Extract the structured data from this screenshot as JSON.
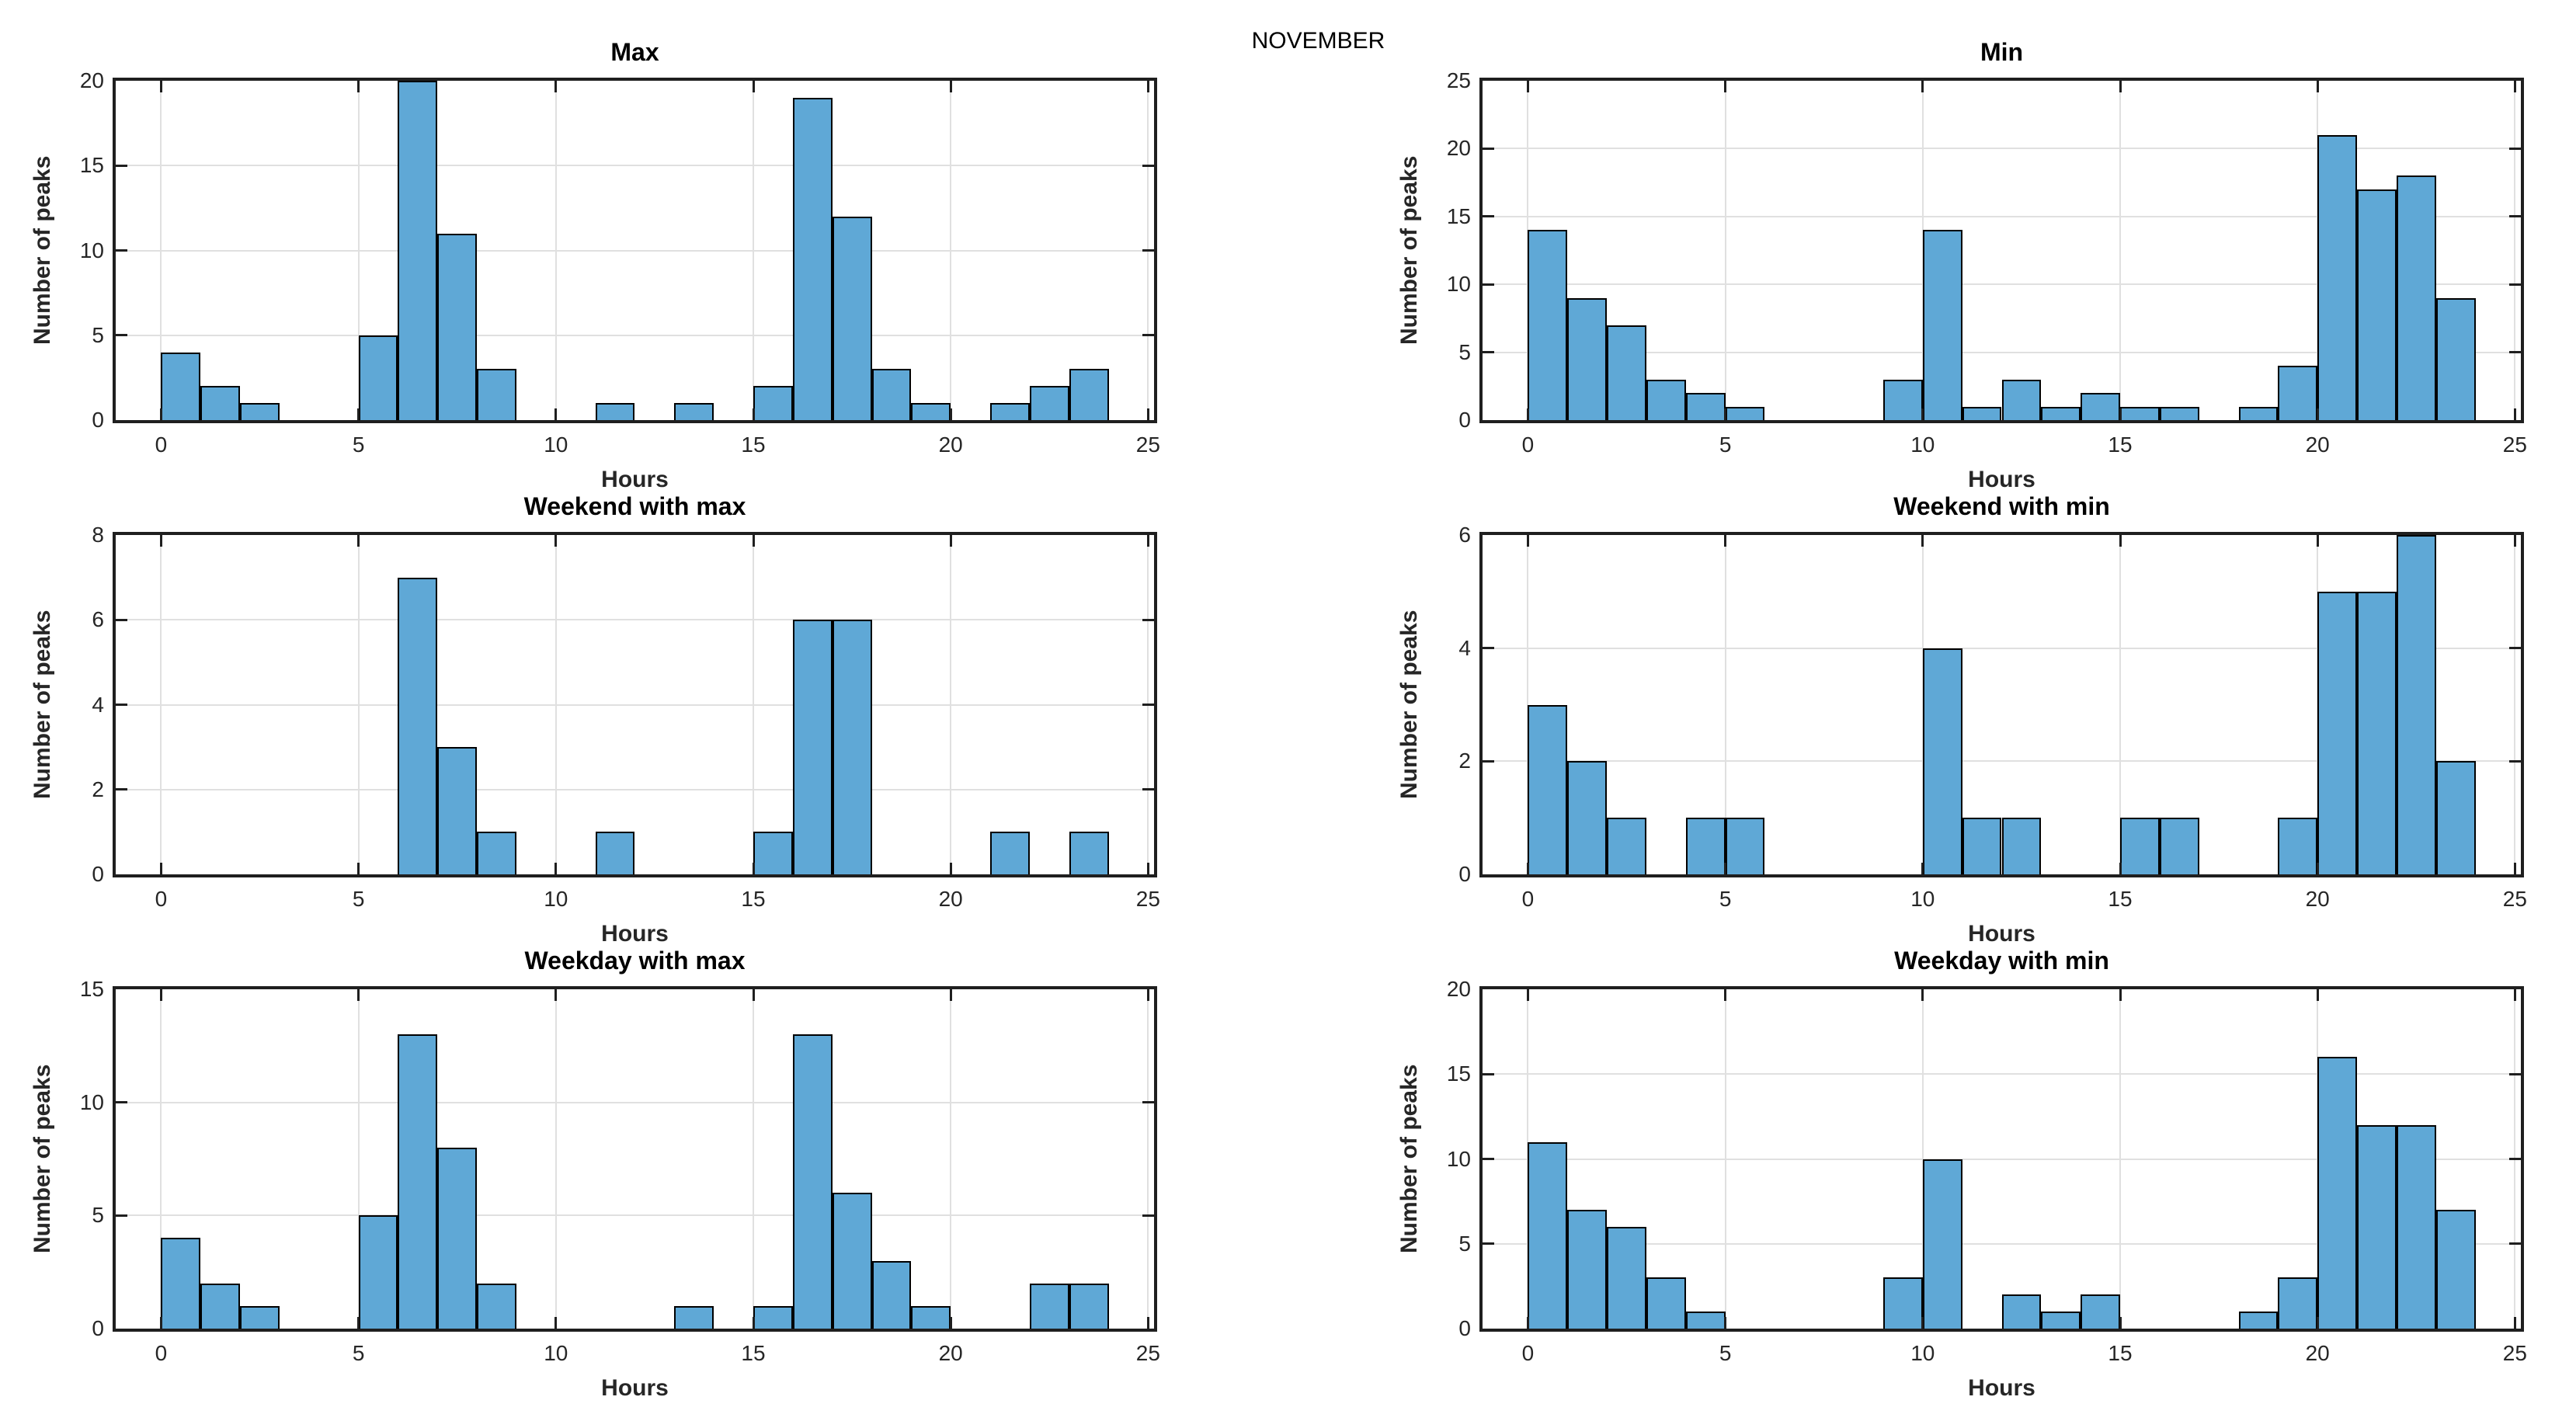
{
  "figure": {
    "title": "NOVEMBER"
  },
  "colors": {
    "bar_fill": "#5FA8D6",
    "bar_edge": "#000000",
    "axis": "#1F1F1F",
    "grid": "#E0E0E0",
    "text": "#262626",
    "background": "#FFFFFF"
  },
  "chart_data": [
    {
      "type": "bar",
      "title": "Max",
      "xlabel": "Hours",
      "ylabel": "Number of peaks",
      "bin_width_hours": 1,
      "first_bin_start_hour": 0,
      "counts_by_hour": [
        4,
        2,
        1,
        0,
        0,
        5,
        20,
        11,
        3,
        0,
        0,
        1,
        0,
        1,
        0,
        2,
        19,
        12,
        3,
        1,
        0,
        1,
        2,
        3
      ],
      "xlim": [
        -1.15,
        25.15
      ],
      "ylim": [
        0,
        20
      ],
      "xticks": [
        0,
        5,
        10,
        15,
        20,
        25
      ],
      "yticks": [
        0,
        5,
        10,
        15,
        20
      ],
      "grid": true
    },
    {
      "type": "bar",
      "title": "Min",
      "xlabel": "Hours",
      "ylabel": "Number of peaks",
      "bin_width_hours": 1,
      "first_bin_start_hour": 0,
      "counts_by_hour": [
        14,
        9,
        7,
        3,
        2,
        1,
        0,
        0,
        0,
        3,
        14,
        1,
        3,
        1,
        2,
        1,
        1,
        0,
        1,
        4,
        21,
        17,
        18,
        9
      ],
      "xlim": [
        -1.15,
        25.15
      ],
      "ylim": [
        0,
        25
      ],
      "xticks": [
        0,
        5,
        10,
        15,
        20,
        25
      ],
      "yticks": [
        0,
        5,
        10,
        15,
        20,
        25
      ],
      "grid": true
    },
    {
      "type": "bar",
      "title": "Weekend with max",
      "xlabel": "Hours",
      "ylabel": "Number of peaks",
      "bin_width_hours": 1,
      "first_bin_start_hour": 0,
      "counts_by_hour": [
        0,
        0,
        0,
        0,
        0,
        0,
        7,
        3,
        1,
        0,
        0,
        1,
        0,
        0,
        0,
        1,
        6,
        6,
        0,
        0,
        0,
        1,
        0,
        1
      ],
      "xlim": [
        -1.15,
        25.15
      ],
      "ylim": [
        0,
        8
      ],
      "xticks": [
        0,
        5,
        10,
        15,
        20,
        25
      ],
      "yticks": [
        0,
        2,
        4,
        6,
        8
      ],
      "grid": true
    },
    {
      "type": "bar",
      "title": "Weekend with min",
      "xlabel": "Hours",
      "ylabel": "Number of peaks",
      "bin_width_hours": 1,
      "first_bin_start_hour": 0,
      "counts_by_hour": [
        3,
        2,
        1,
        0,
        1,
        1,
        0,
        0,
        0,
        0,
        4,
        1,
        1,
        0,
        0,
        1,
        1,
        0,
        0,
        1,
        5,
        5,
        6,
        2
      ],
      "xlim": [
        -1.15,
        25.15
      ],
      "ylim": [
        0,
        6
      ],
      "xticks": [
        0,
        5,
        10,
        15,
        20,
        25
      ],
      "yticks": [
        0,
        2,
        4,
        6
      ],
      "grid": true
    },
    {
      "type": "bar",
      "title": "Weekday with max",
      "xlabel": "Hours",
      "ylabel": "Number of peaks",
      "bin_width_hours": 1,
      "first_bin_start_hour": 0,
      "counts_by_hour": [
        4,
        2,
        1,
        0,
        0,
        5,
        13,
        8,
        2,
        0,
        0,
        0,
        0,
        1,
        0,
        1,
        13,
        6,
        3,
        1,
        0,
        0,
        2,
        2
      ],
      "xlim": [
        -1.15,
        25.15
      ],
      "ylim": [
        0,
        15
      ],
      "xticks": [
        0,
        5,
        10,
        15,
        20,
        25
      ],
      "yticks": [
        0,
        5,
        10,
        15
      ],
      "grid": true
    },
    {
      "type": "bar",
      "title": "Weekday with min",
      "xlabel": "Hours",
      "ylabel": "Number of peaks",
      "bin_width_hours": 1,
      "first_bin_start_hour": 0,
      "counts_by_hour": [
        11,
        7,
        6,
        3,
        1,
        0,
        0,
        0,
        0,
        3,
        10,
        0,
        2,
        1,
        2,
        0,
        0,
        0,
        1,
        3,
        16,
        12,
        12,
        7
      ],
      "xlim": [
        -1.15,
        25.15
      ],
      "ylim": [
        0,
        20
      ],
      "xticks": [
        0,
        5,
        10,
        15,
        20,
        25
      ],
      "yticks": [
        0,
        5,
        10,
        15,
        20
      ],
      "grid": true
    }
  ]
}
